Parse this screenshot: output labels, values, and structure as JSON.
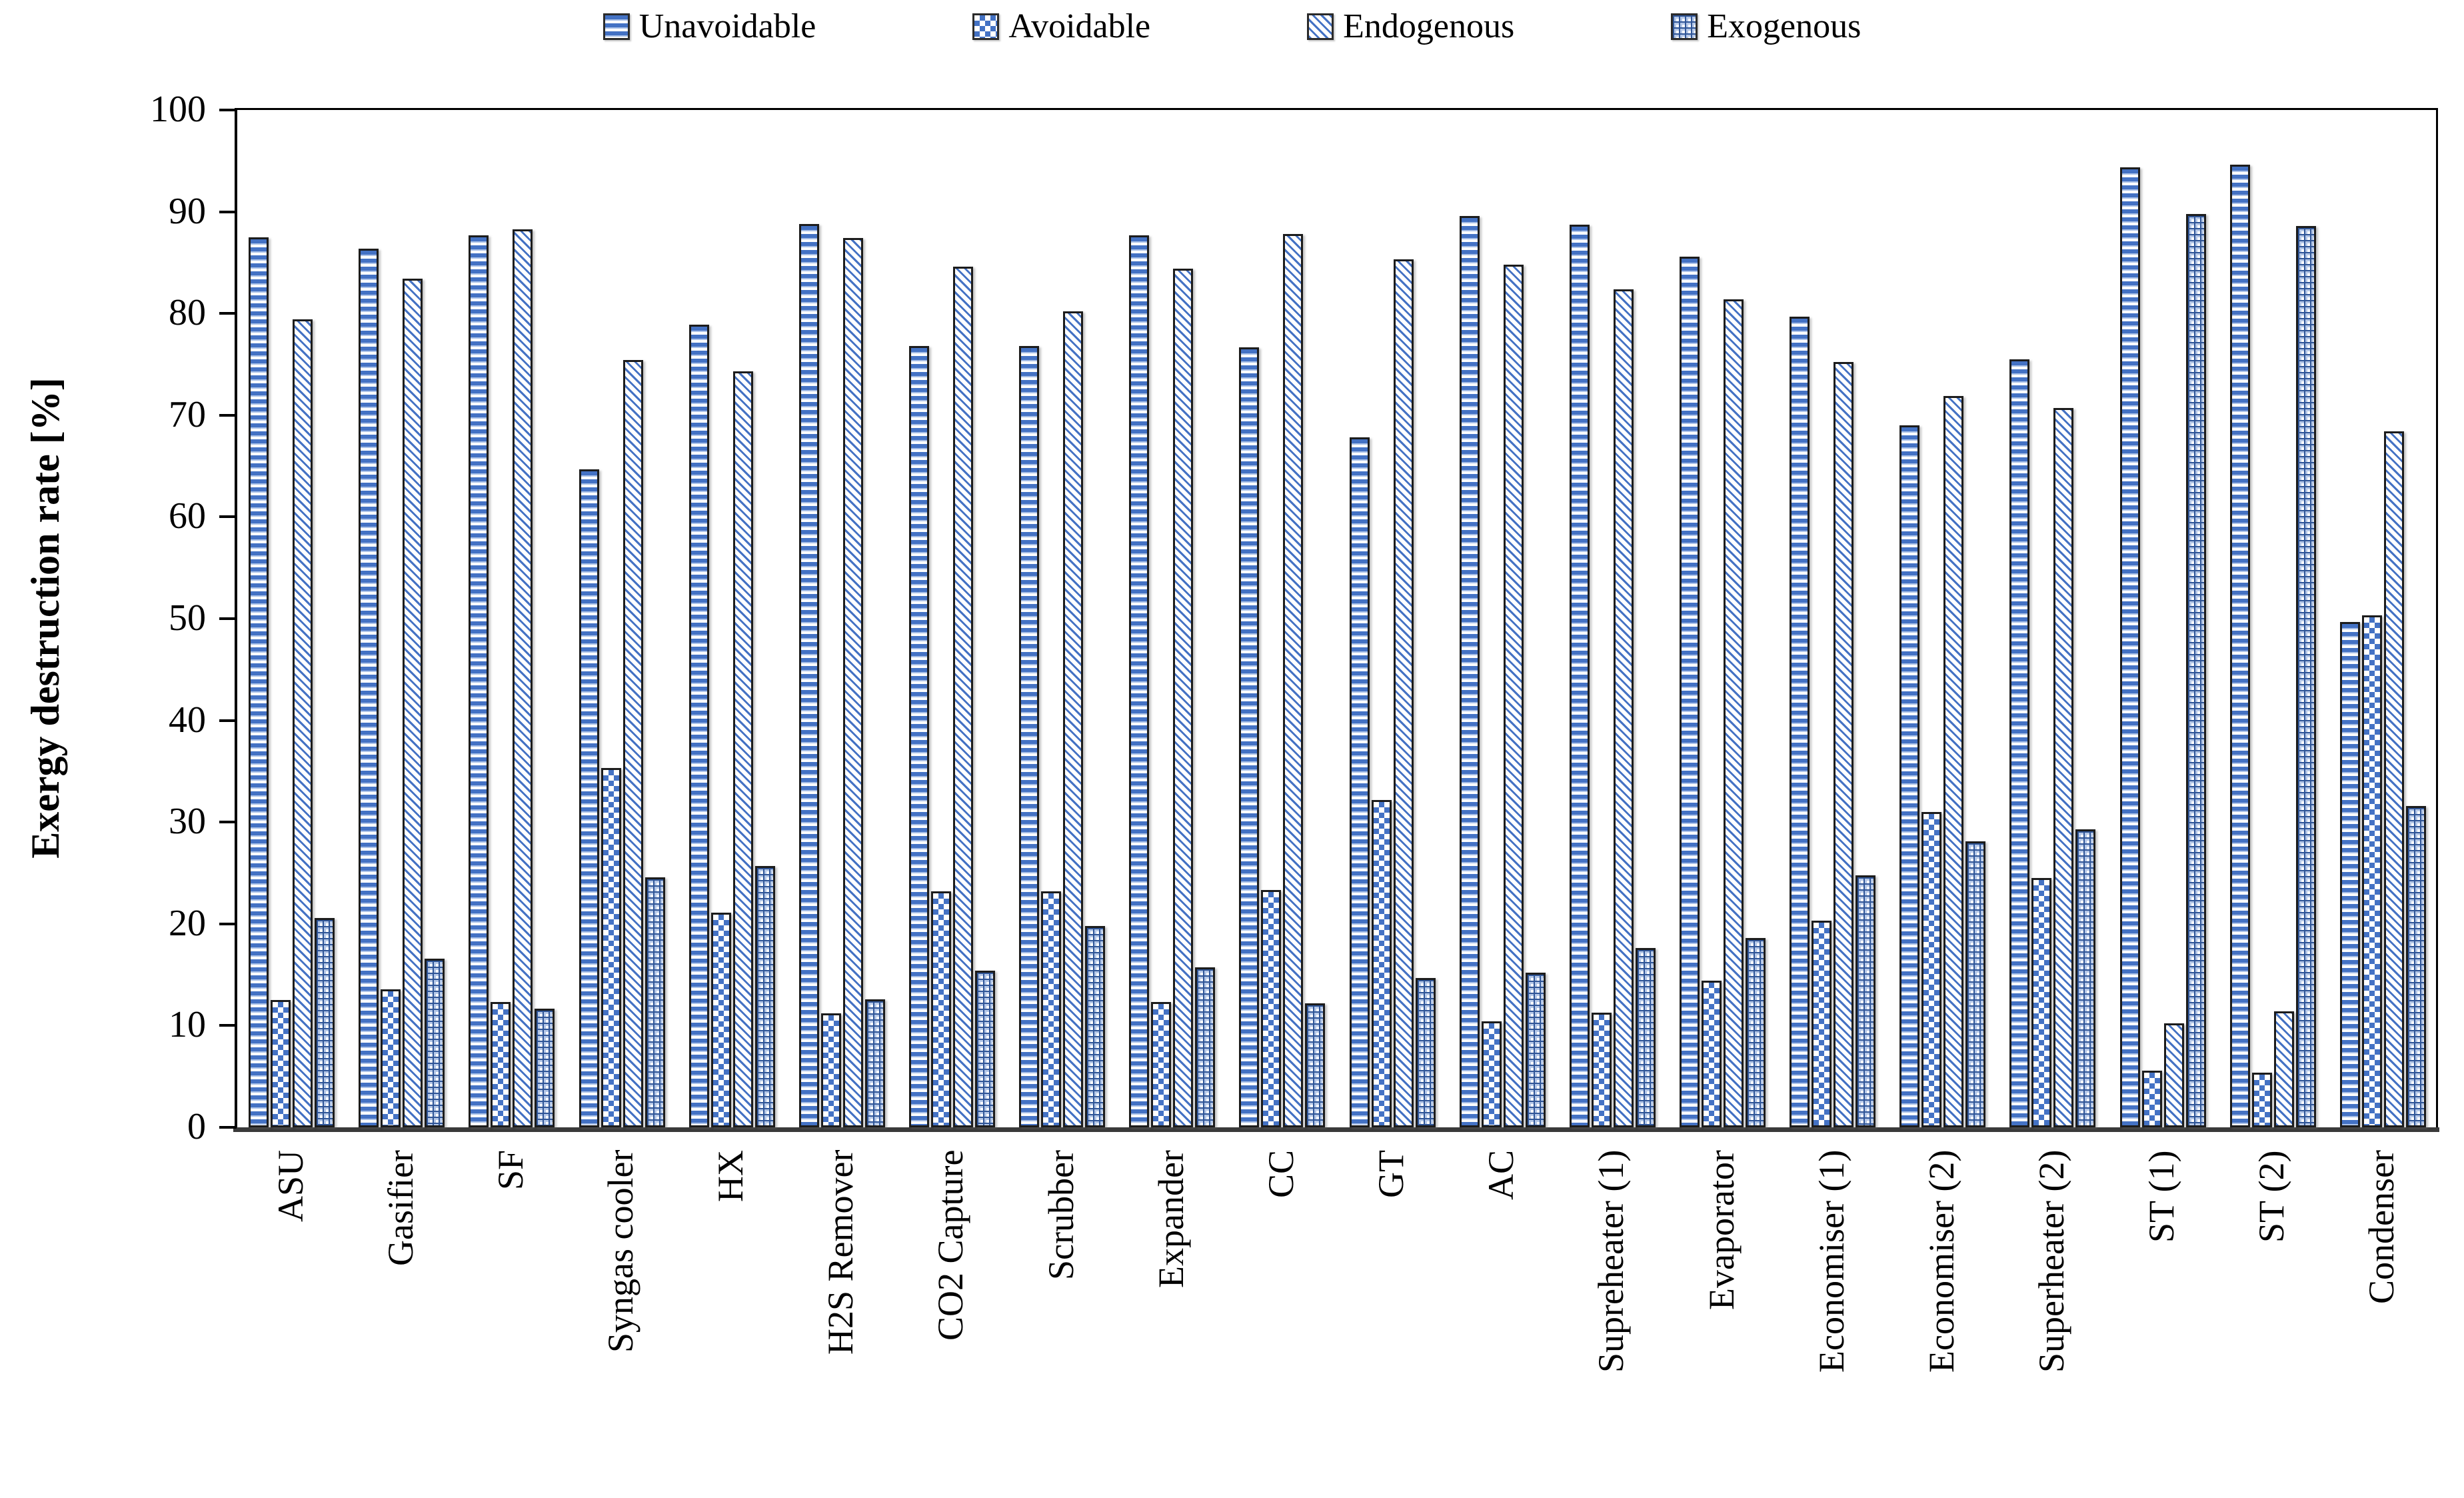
{
  "y_axis_title": "Exergy destruction rate [%]",
  "chart_data": {
    "type": "bar",
    "title": "",
    "xlabel": "",
    "ylabel": "Exergy destruction rate [%]",
    "ylim": [
      0,
      100
    ],
    "ytick_step": 10,
    "yticks": [
      0,
      10,
      20,
      30,
      40,
      50,
      60,
      70,
      80,
      90,
      100
    ],
    "grid": false,
    "legend_position": "top",
    "categories": [
      "ASU",
      "Gasifier",
      "SF",
      "Syngas cooler",
      "HX",
      "H2S Remover",
      "CO2 Capture",
      "Scrubber",
      "Expander",
      "CC",
      "GT",
      "AC",
      "Supreheater (1)",
      "Evaporator",
      "Economiser (1)",
      "Economiser (2)",
      "Superheater (2)",
      "ST (1)",
      "ST (2)",
      "Condenser"
    ],
    "series": [
      {
        "name": "Unavoidable",
        "pattern": "horizontal-stripes",
        "values": [
          87.5,
          86.4,
          87.7,
          64.7,
          78.9,
          88.8,
          76.8,
          76.8,
          87.7,
          76.7,
          67.8,
          89.6,
          88.7,
          85.6,
          79.7,
          69.0,
          75.5,
          94.4,
          94.6,
          49.7
        ]
      },
      {
        "name": "Avoidable",
        "pattern": "checkerboard",
        "values": [
          12.5,
          13.6,
          12.3,
          35.3,
          21.1,
          11.2,
          23.2,
          23.2,
          12.3,
          23.3,
          32.2,
          10.4,
          11.3,
          14.4,
          20.3,
          31.0,
          24.5,
          5.6,
          5.4,
          50.3
        ]
      },
      {
        "name": "Endogenous",
        "pattern": "diagonal-stripes",
        "values": [
          79.4,
          83.4,
          88.3,
          75.4,
          74.3,
          87.4,
          84.6,
          80.2,
          84.4,
          87.8,
          85.3,
          84.8,
          82.4,
          81.4,
          75.2,
          71.9,
          70.7,
          10.2,
          11.4,
          68.4
        ]
      },
      {
        "name": "Exogenous",
        "pattern": "grid",
        "values": [
          20.6,
          16.6,
          11.7,
          24.6,
          25.7,
          12.6,
          15.4,
          19.8,
          15.7,
          12.2,
          14.7,
          15.2,
          17.6,
          18.6,
          24.8,
          28.1,
          29.3,
          89.8,
          88.6,
          31.6
        ]
      }
    ],
    "colors": {
      "bar_blue": "#4472C4",
      "bar_outline": "#1c1c1c",
      "axis": "#000000"
    }
  }
}
